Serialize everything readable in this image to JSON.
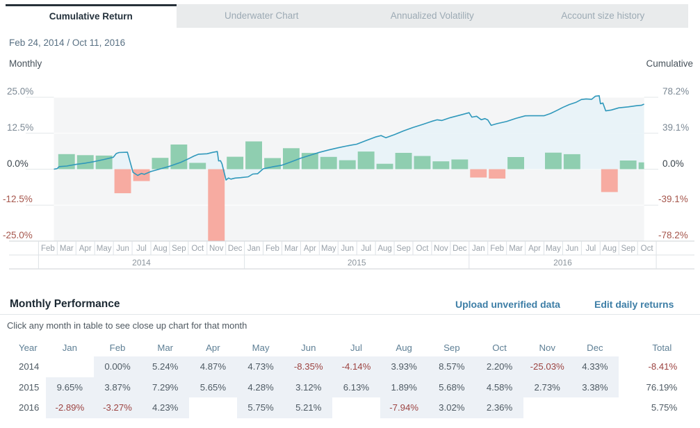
{
  "tabs": [
    {
      "label": "Cumulative Return",
      "active": true
    },
    {
      "label": "Underwater Chart",
      "active": false
    },
    {
      "label": "Annualized Volatility",
      "active": false
    },
    {
      "label": "Account size history",
      "active": false
    }
  ],
  "date_range": "Feb 24, 2014 / Oct 11, 2016",
  "chart_data": {
    "type": "combo-bar-line",
    "left_axis": {
      "title": "Monthly",
      "tick_labels": [
        "25.0%",
        "12.5%",
        "0.0%",
        "-12.5%",
        "-25.0%"
      ],
      "range": [
        -25,
        25
      ]
    },
    "right_axis": {
      "title": "Cumulative",
      "tick_labels": [
        "78.2%",
        "39.1%",
        "0.0%",
        "-39.1%",
        "-78.2%"
      ],
      "range": [
        -78.2,
        78.2
      ]
    },
    "months": [
      "Feb",
      "Mar",
      "Apr",
      "May",
      "Jun",
      "Jul",
      "Aug",
      "Sep",
      "Oct",
      "Nov",
      "Dec",
      "Jan",
      "Feb",
      "Mar",
      "Apr",
      "May",
      "Jun",
      "Jul",
      "Aug",
      "Sep",
      "Oct",
      "Nov",
      "Dec",
      "Jan",
      "Feb",
      "Mar",
      "Apr",
      "May",
      "Jun",
      "Jul",
      "Aug",
      "Sep",
      "Oct"
    ],
    "year_groups": [
      {
        "label": "2014",
        "count": 11
      },
      {
        "label": "2015",
        "count": 12
      },
      {
        "label": "2016",
        "count": 10
      }
    ],
    "bar_series": {
      "name": "Monthly return %",
      "values": [
        0.0,
        5.24,
        4.87,
        4.73,
        -8.35,
        -4.14,
        3.93,
        8.57,
        2.2,
        -25.03,
        4.33,
        9.65,
        3.87,
        7.29,
        5.65,
        4.28,
        3.12,
        6.13,
        1.89,
        5.68,
        4.58,
        2.73,
        3.38,
        -2.89,
        -3.27,
        4.23,
        null,
        5.75,
        5.21,
        null,
        -7.94,
        3.02,
        2.36
      ]
    },
    "line_series": {
      "name": "Cumulative return %",
      "points": [
        [
          0.82,
          0
        ],
        [
          1,
          0.6
        ],
        [
          1.1,
          2.8
        ],
        [
          1.5,
          3.4
        ],
        [
          2,
          5.2
        ],
        [
          2.5,
          6.6
        ],
        [
          3,
          8.4
        ],
        [
          3.5,
          10.6
        ],
        [
          4,
          13
        ],
        [
          4.15,
          17
        ],
        [
          4.3,
          18.1
        ],
        [
          4.75,
          18.4
        ],
        [
          5.05,
          -3.5
        ],
        [
          5.3,
          -6.8
        ],
        [
          5.5,
          -4.6
        ],
        [
          5.65,
          -5.6
        ],
        [
          6,
          -2.6
        ],
        [
          6.6,
          0.8
        ],
        [
          7,
          3.2
        ],
        [
          7.6,
          7.5
        ],
        [
          8,
          11.2
        ],
        [
          8.3,
          14.3
        ],
        [
          8.55,
          16.3
        ],
        [
          9,
          16.8
        ],
        [
          9.3,
          18.3
        ],
        [
          9.55,
          19.2
        ],
        [
          9.62,
          9
        ],
        [
          9.72,
          9.2
        ],
        [
          9.8,
          6
        ],
        [
          10.02,
          -11.8
        ],
        [
          10.15,
          -9.6
        ],
        [
          10.28,
          -10.8
        ],
        [
          10.5,
          -9.7
        ],
        [
          10.8,
          -9.2
        ],
        [
          11.2,
          -8.3
        ],
        [
          11.45,
          -5.3
        ],
        [
          11.7,
          -5
        ],
        [
          12,
          0.4
        ],
        [
          12.5,
          2.6
        ],
        [
          13,
          4.3
        ],
        [
          13.5,
          8
        ],
        [
          14,
          11.9
        ],
        [
          14.5,
          15.1
        ],
        [
          15,
          18.3
        ],
        [
          15.5,
          20.9
        ],
        [
          16,
          23.3
        ],
        [
          16.5,
          25.4
        ],
        [
          17,
          27.2
        ],
        [
          17.5,
          31.2
        ],
        [
          18,
          35
        ],
        [
          18.3,
          36.6
        ],
        [
          18.55,
          34.2
        ],
        [
          19,
          37.5
        ],
        [
          19.5,
          41.6
        ],
        [
          20,
          45.3
        ],
        [
          20.5,
          48.6
        ],
        [
          21,
          52
        ],
        [
          21.3,
          53.7
        ],
        [
          21.55,
          53
        ],
        [
          22,
          56.1
        ],
        [
          22.5,
          58.7
        ],
        [
          23,
          61.4
        ],
        [
          23.15,
          56.6
        ],
        [
          23.4,
          57.6
        ],
        [
          23.65,
          53.8
        ],
        [
          23.85,
          55
        ],
        [
          24,
          53.6
        ],
        [
          24.18,
          47.7
        ],
        [
          24.5,
          49.6
        ],
        [
          25,
          51.8
        ],
        [
          25.5,
          55.2
        ],
        [
          26,
          58
        ],
        [
          26.4,
          58.2
        ],
        [
          27,
          58.1
        ],
        [
          27.35,
          60.5
        ],
        [
          27.7,
          64
        ],
        [
          28,
          67.1
        ],
        [
          28.35,
          70.3
        ],
        [
          28.7,
          72.6
        ],
        [
          29,
          75.8
        ],
        [
          29.25,
          76.4
        ],
        [
          29.55,
          76
        ],
        [
          29.75,
          79.4
        ],
        [
          29.95,
          79.9
        ],
        [
          30.02,
          71.2
        ],
        [
          30.15,
          71.9
        ],
        [
          30.3,
          63.4
        ],
        [
          30.6,
          64.4
        ],
        [
          31,
          66.7
        ],
        [
          31.5,
          67.8
        ],
        [
          32,
          69.2
        ],
        [
          32.2,
          69.4
        ],
        [
          32.35,
          70.7
        ]
      ]
    },
    "plot_start_month": 0.82,
    "plot_end_month": 32.35,
    "colors": {
      "bar_positive": "#8fceb0",
      "bar_negative": "#f7aba1",
      "line": "#2f98bb",
      "area": "#e8f3f8",
      "plot_bg": "#f4f5f6",
      "grid_outside": "#e3e7e9",
      "grid_inside": "#ffffff",
      "axis_row_line": "#ccd2d6",
      "axis_row_line_light": "#dde2e6"
    }
  },
  "table": {
    "title": "Monthly Performance",
    "links": [
      {
        "label": "Upload unverified data"
      },
      {
        "label": "Edit daily returns"
      }
    ],
    "hint": "Click any month in table to see close up chart for that month",
    "headers": [
      "Year",
      "Jan",
      "Feb",
      "Mar",
      "Apr",
      "May",
      "Jun",
      "Jul",
      "Aug",
      "Sep",
      "Oct",
      "Nov",
      "Dec",
      "Total"
    ],
    "rows": [
      {
        "year": "2014",
        "values": [
          "",
          "0.00%",
          "5.24%",
          "4.87%",
          "4.73%",
          "-8.35%",
          "-4.14%",
          "3.93%",
          "8.57%",
          "2.20%",
          "-25.03%",
          "4.33%"
        ],
        "total": "-8.41%"
      },
      {
        "year": "2015",
        "values": [
          "9.65%",
          "3.87%",
          "7.29%",
          "5.65%",
          "4.28%",
          "3.12%",
          "6.13%",
          "1.89%",
          "5.68%",
          "4.58%",
          "2.73%",
          "3.38%"
        ],
        "total": "76.19%"
      },
      {
        "year": "2016",
        "values": [
          "-2.89%",
          "-3.27%",
          "4.23%",
          "",
          "5.75%",
          "5.21%",
          "",
          "-7.94%",
          "3.02%",
          "2.36%",
          "",
          ""
        ],
        "total": "5.75%"
      }
    ]
  },
  "colors": {
    "link": "#3d7ea6",
    "tab_active_border": "#263039",
    "negative_text": "#9c4341",
    "positive_text": "#4e5a63",
    "table_header_text": "#5e7f95",
    "shaded_cell": "#edf1f6"
  }
}
